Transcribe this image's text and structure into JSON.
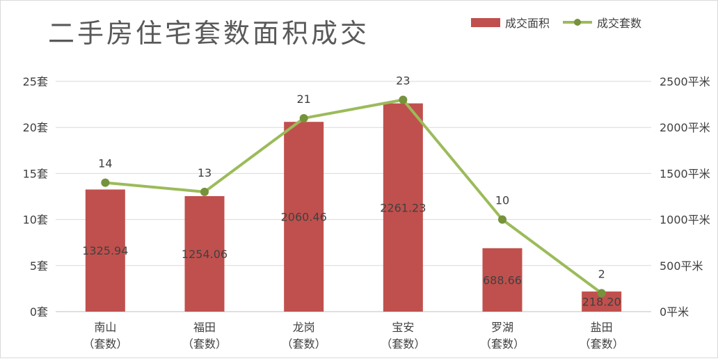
{
  "chart_data": {
    "type": "bar",
    "title": "二手房住宅套数面积成交",
    "categories": [
      {
        "name": "南山",
        "sub": "（套数）"
      },
      {
        "name": "福田",
        "sub": "（套数）"
      },
      {
        "name": "龙岗",
        "sub": "（套数）"
      },
      {
        "name": "宝安",
        "sub": "（套数）"
      },
      {
        "name": "罗湖",
        "sub": "（套数）"
      },
      {
        "name": "盐田",
        "sub": "（套数）"
      }
    ],
    "series": [
      {
        "name": "成交面积",
        "type": "bar",
        "axis": "right",
        "color": "#c0504d",
        "values": [
          1325.94,
          1254.06,
          2060.46,
          2261.23,
          688.66,
          218.2
        ],
        "labels": [
          "1325.94",
          "1254.06",
          "2060.46",
          "2261.23",
          "688.66",
          "218.20"
        ]
      },
      {
        "name": "成交套数",
        "type": "line",
        "axis": "left",
        "color": "#9bbb59",
        "marker_color": "#76923c",
        "values": [
          14,
          13,
          21,
          23,
          10,
          2
        ],
        "labels": [
          "14",
          "13",
          "21",
          "23",
          "10",
          "2"
        ]
      }
    ],
    "y_left": {
      "min": 0,
      "max": 25,
      "ticks": [
        0,
        5,
        10,
        15,
        20,
        25
      ],
      "tick_labels": [
        "0套",
        "5套",
        "10套",
        "15套",
        "20套",
        "25套"
      ]
    },
    "y_right": {
      "min": 0,
      "max": 2500,
      "ticks": [
        0,
        500,
        1000,
        1500,
        2000,
        2500
      ],
      "tick_labels": [
        "0平米",
        "500平米",
        "1000平米",
        "1500平米",
        "2000平米",
        "2500平米"
      ]
    },
    "grid": true,
    "legend_position": "top-right"
  }
}
